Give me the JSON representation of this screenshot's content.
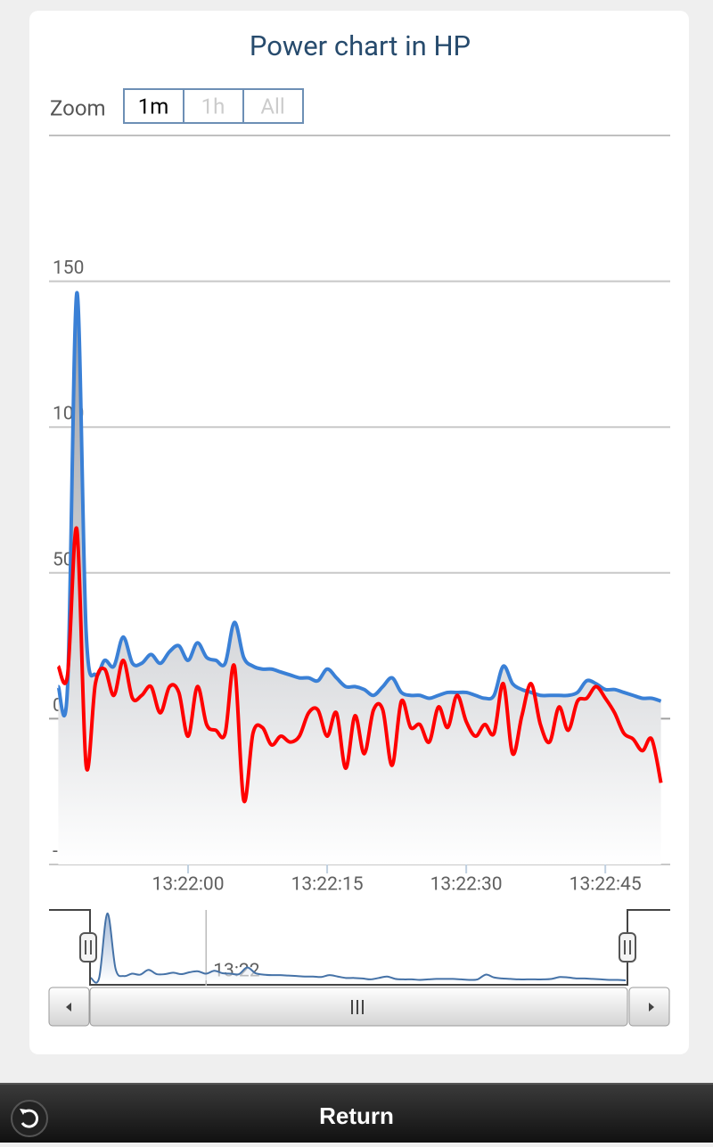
{
  "chart_data": {
    "type": "line",
    "title": "Power chart in HP",
    "range_selector": {
      "label": "Zoom",
      "buttons": [
        "1m",
        "1h",
        "All"
      ],
      "selected": 0
    },
    "x": [
      "13:21:46",
      "13:21:47",
      "13:21:48",
      "13:21:49",
      "13:21:50",
      "13:21:51",
      "13:21:52",
      "13:21:53",
      "13:21:54",
      "13:21:55",
      "13:21:56",
      "13:21:57",
      "13:21:58",
      "13:21:59",
      "13:22:00",
      "13:22:01",
      "13:22:02",
      "13:22:03",
      "13:22:04",
      "13:22:05",
      "13:22:06",
      "13:22:07",
      "13:22:08",
      "13:22:09",
      "13:22:10",
      "13:22:11",
      "13:22:12",
      "13:22:13",
      "13:22:14",
      "13:22:15",
      "13:22:16",
      "13:22:17",
      "13:22:18",
      "13:22:19",
      "13:22:20",
      "13:22:21",
      "13:22:22",
      "13:22:23",
      "13:22:24",
      "13:22:25",
      "13:22:26",
      "13:22:27",
      "13:22:28",
      "13:22:29",
      "13:22:30",
      "13:22:31",
      "13:22:32",
      "13:22:33",
      "13:22:34",
      "13:22:35",
      "13:22:36",
      "13:22:37",
      "13:22:38",
      "13:22:39",
      "13:22:40",
      "13:22:41",
      "13:22:42",
      "13:22:43",
      "13:22:44",
      "13:22:45",
      "13:22:46",
      "13:22:47",
      "13:22:48",
      "13:22:49",
      "13:22:50",
      "13:22:51"
    ],
    "series": [
      {
        "color": "#3a80d6",
        "area": true,
        "values": [
          11,
          11,
          146,
          30,
          15,
          20,
          18,
          28,
          19,
          19,
          22,
          19,
          23,
          25,
          20,
          26,
          21,
          20,
          19,
          33,
          21,
          18,
          17,
          17,
          16,
          15,
          14,
          14,
          13,
          17,
          14,
          11,
          11,
          10,
          8,
          11,
          14,
          9,
          8,
          8,
          7,
          8,
          9,
          9,
          9,
          8,
          7,
          8,
          18,
          12,
          10,
          9,
          8,
          8,
          8,
          8,
          9,
          13,
          12,
          10,
          10,
          9,
          8,
          7,
          7,
          6
        ]
      },
      {
        "color": "#ff0000",
        "area": false,
        "values": [
          18,
          15,
          65,
          -16,
          12,
          17,
          8,
          20,
          7,
          8,
          11,
          2,
          11,
          9,
          -6,
          11,
          -2,
          -4,
          -5,
          18,
          -28,
          -5,
          -3,
          -9,
          -6,
          -8,
          -6,
          2,
          3,
          -6,
          2,
          -17,
          1,
          -12,
          3,
          3,
          -16,
          6,
          -3,
          -2,
          -8,
          4,
          -3,
          8,
          -1,
          -6,
          -2,
          -5,
          12,
          -12,
          1,
          12,
          -2,
          -8,
          4,
          -4,
          6,
          7,
          11,
          7,
          2,
          -5,
          -7,
          -11,
          -7,
          -22
        ]
      }
    ],
    "xlim": [
      "13:21:45",
      "13:22:52"
    ],
    "xticks": [
      "13:22:00",
      "13:22:15",
      "13:22:30",
      "13:22:45"
    ],
    "ylim": [
      -50,
      200
    ],
    "yticks": [
      -50,
      0,
      50,
      100,
      150
    ],
    "grid": true,
    "navigator": {
      "xticks": [
        {
          "value": "13:22:00",
          "label": "13:22"
        }
      ]
    },
    "footer": {
      "button": "Return"
    }
  }
}
